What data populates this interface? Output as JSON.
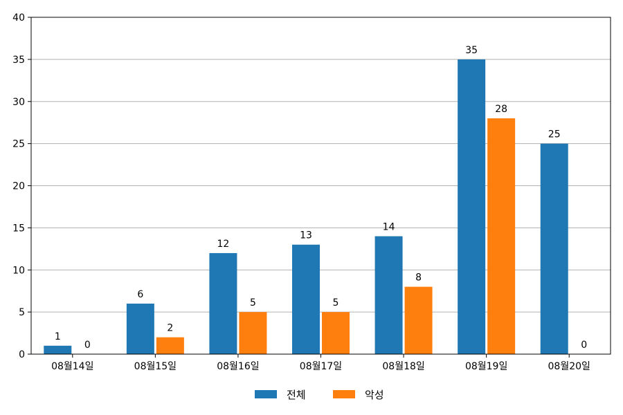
{
  "chart_data": {
    "type": "bar",
    "title": "",
    "xlabel": "",
    "ylabel": "",
    "categories": [
      "08월14일",
      "08월15일",
      "08월16일",
      "08월17일",
      "08월18일",
      "08월19일",
      "08월20일"
    ],
    "series": [
      {
        "name": "전체",
        "color": "#1f77b4",
        "values": [
          1,
          6,
          12,
          13,
          14,
          35,
          25
        ]
      },
      {
        "name": "악성",
        "color": "#ff7f0e",
        "values": [
          0,
          2,
          5,
          5,
          8,
          28,
          0
        ]
      }
    ],
    "ylim": [
      0,
      40
    ],
    "yticks": [
      0,
      5,
      10,
      15,
      20,
      25,
      30,
      35,
      40
    ],
    "grid": "horizontal",
    "legend_position": "bottom-center",
    "data_labels": true
  }
}
